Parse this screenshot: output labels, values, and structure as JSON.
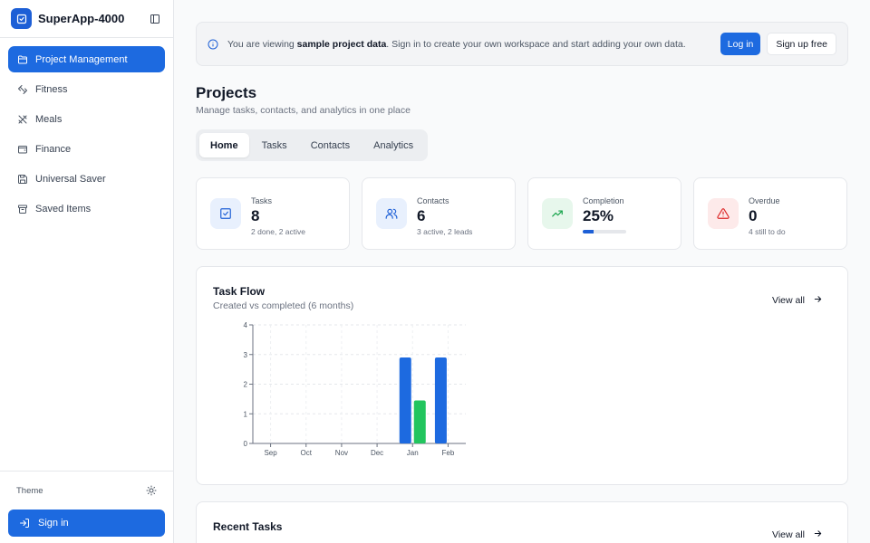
{
  "app": {
    "name": "SuperApp-4000"
  },
  "sidebar": {
    "items": [
      {
        "label": "Project Management",
        "icon": "folder-icon",
        "active": true
      },
      {
        "label": "Fitness",
        "icon": "dumbbell-icon"
      },
      {
        "label": "Meals",
        "icon": "utensils-icon"
      },
      {
        "label": "Finance",
        "icon": "wallet-icon"
      },
      {
        "label": "Universal Saver",
        "icon": "save-icon"
      },
      {
        "label": "Saved Items",
        "icon": "archive-icon"
      }
    ],
    "theme_label": "Theme",
    "signin_label": "Sign in"
  },
  "banner": {
    "text_before": "You are viewing ",
    "text_bold": "sample project data",
    "text_after": ". Sign in to create your own workspace and start adding your own data.",
    "login_label": "Log in",
    "signup_label": "Sign up free"
  },
  "page": {
    "title": "Projects",
    "subtitle": "Manage tasks, contacts, and analytics in one place"
  },
  "tabs": [
    {
      "label": "Home",
      "active": true
    },
    {
      "label": "Tasks"
    },
    {
      "label": "Contacts"
    },
    {
      "label": "Analytics"
    }
  ],
  "stats": [
    {
      "label": "Tasks",
      "value": "8",
      "note": "2 done, 2 active",
      "icon": "check-square-icon",
      "color": "#1d5fd6",
      "bg": "#e8f0fd"
    },
    {
      "label": "Contacts",
      "value": "6",
      "note": "3 active, 2 leads",
      "icon": "users-icon",
      "color": "#1d5fd6",
      "bg": "#e8f0fd"
    },
    {
      "label": "Completion",
      "value": "25%",
      "progress": 0.25,
      "icon": "trending-up-icon",
      "color": "#16a34a",
      "bg": "#e7f7ec"
    },
    {
      "label": "Overdue",
      "value": "0",
      "note": "4 still to do",
      "icon": "alert-triangle-icon",
      "color": "#dc2626",
      "bg": "#fdeaea"
    }
  ],
  "task_flow": {
    "title": "Task Flow",
    "subtitle": "Created vs completed (6 months)",
    "view_all": "View all"
  },
  "chart_data": {
    "type": "bar",
    "categories": [
      "Sep",
      "Oct",
      "Nov",
      "Dec",
      "Jan",
      "Feb"
    ],
    "series": [
      {
        "values": [
          0,
          0,
          0,
          0,
          2.9,
          2.9
        ],
        "color": "#1d6ae0"
      },
      {
        "values": [
          0,
          0,
          0,
          0,
          1.45,
          0
        ],
        "color": "#22c55e"
      }
    ],
    "yticks": [
      "0",
      "1",
      "2",
      "3",
      "4"
    ],
    "ylim": [
      0,
      4
    ],
    "grid": true
  },
  "recent_tasks": {
    "title": "Recent Tasks",
    "view_all": "View all"
  }
}
